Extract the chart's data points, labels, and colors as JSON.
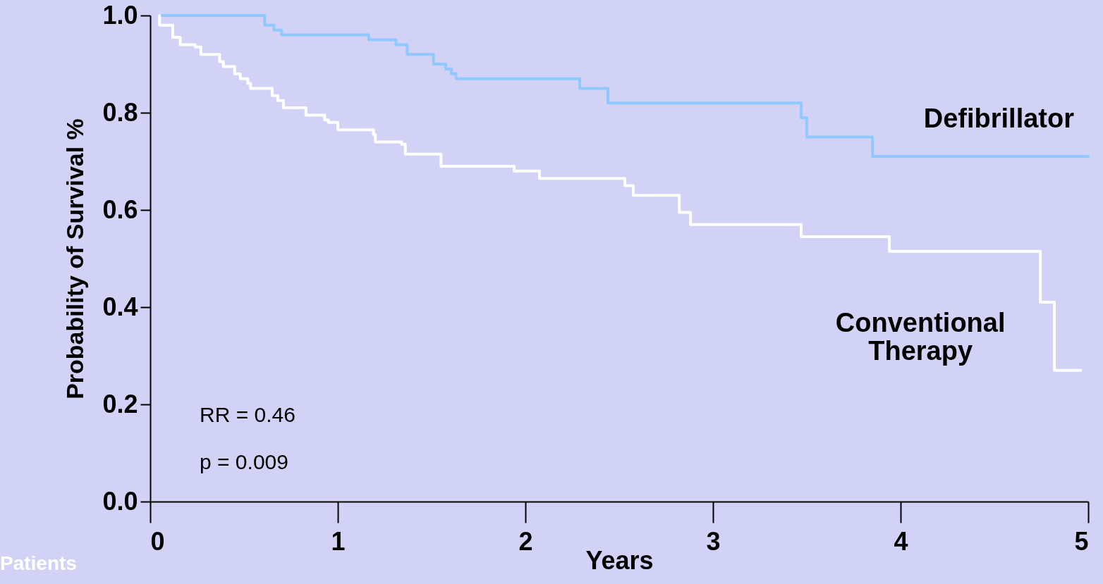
{
  "chart_data": {
    "type": "step",
    "xlabel": "Years",
    "ylabel": "Probability of Survival %",
    "xlim": [
      0,
      5
    ],
    "ylim": [
      0,
      1
    ],
    "xticks": [
      0,
      1,
      2,
      3,
      4,
      5
    ],
    "yticks": [
      {
        "value": 0,
        "label": "0.0"
      },
      0.2,
      0.4,
      0.6,
      0.8,
      {
        "value": 1,
        "label": "1.0"
      }
    ],
    "grid": false,
    "legend": false,
    "marker": "none",
    "line_style": "solid",
    "series": [
      {
        "name": "Defibrillator",
        "color": "#90c8ff",
        "x": [
          0.05,
          0.61,
          0.66,
          0.7,
          1.165,
          1.31,
          1.37,
          1.51,
          1.575,
          1.605,
          1.63,
          2.29,
          2.44,
          3.47,
          3.5,
          3.85,
          5.0
        ],
        "values": [
          1.0,
          0.98,
          0.97,
          0.96,
          0.95,
          0.94,
          0.92,
          0.9,
          0.89,
          0.88,
          0.87,
          0.85,
          0.82,
          0.79,
          0.75,
          0.71,
          0.71
        ]
      },
      {
        "name": "Conventional Therapy",
        "color": "#ffffff",
        "x": [
          0.05,
          0.05,
          0.12,
          0.16,
          0.24,
          0.27,
          0.37,
          0.39,
          0.45,
          0.48,
          0.52,
          0.535,
          0.65,
          0.68,
          0.71,
          0.83,
          0.93,
          0.95,
          1.0,
          1.19,
          1.2,
          1.34,
          1.36,
          1.55,
          1.94,
          2.075,
          2.53,
          2.575,
          2.82,
          2.88,
          3.47,
          3.94,
          4.745,
          4.82,
          4.96
        ],
        "values": [
          1.0,
          0.98,
          0.955,
          0.94,
          0.935,
          0.92,
          0.905,
          0.895,
          0.88,
          0.87,
          0.86,
          0.85,
          0.835,
          0.825,
          0.81,
          0.795,
          0.785,
          0.78,
          0.765,
          0.755,
          0.74,
          0.735,
          0.715,
          0.69,
          0.68,
          0.665,
          0.65,
          0.63,
          0.595,
          0.57,
          0.545,
          0.515,
          0.41,
          0.27,
          0.27
        ]
      }
    ],
    "annotations": [
      "RR = 0.46",
      "p = 0.009",
      "Patients"
    ]
  }
}
